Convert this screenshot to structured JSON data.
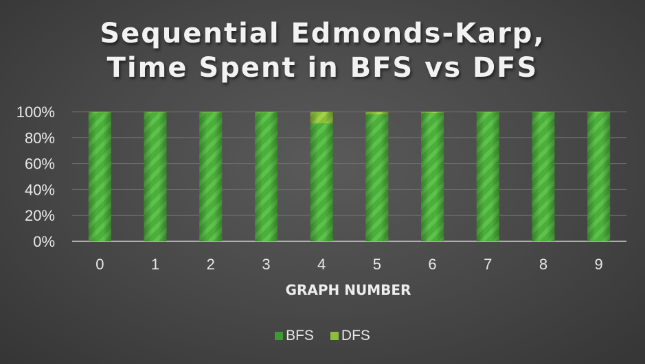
{
  "chart_data": {
    "type": "bar",
    "stacked": true,
    "title_lines": [
      "Sequential Edmonds-Karp,",
      "Time Spent in BFS vs DFS"
    ],
    "xlabel": "GRAPH NUMBER",
    "ylabel": "",
    "categories": [
      "0",
      "1",
      "2",
      "3",
      "4",
      "5",
      "6",
      "7",
      "8",
      "9"
    ],
    "yticks": [
      "0%",
      "20%",
      "40%",
      "60%",
      "80%",
      "100%"
    ],
    "ylim": [
      0,
      100
    ],
    "grid": true,
    "legend_position": "bottom",
    "series": [
      {
        "name": "BFS",
        "color": "#4caf3c",
        "values": [
          99.5,
          99.5,
          99.5,
          99.5,
          91,
          98,
          99,
          99.5,
          99.5,
          99.5
        ]
      },
      {
        "name": "DFS",
        "color": "#8bc34a",
        "values": [
          0.5,
          0.5,
          0.5,
          0.5,
          9,
          2,
          1,
          0.5,
          0.5,
          0.5
        ]
      }
    ]
  }
}
